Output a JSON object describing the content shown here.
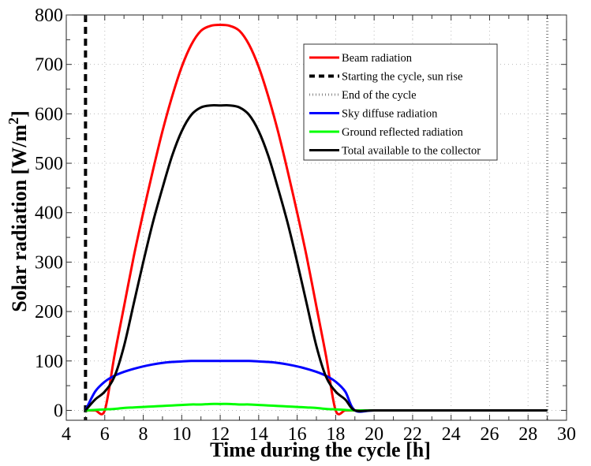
{
  "chart_data": {
    "type": "line",
    "title": "",
    "xlabel": "Time during the cycle  [h]",
    "ylabel": "Solar radiation [W/m",
    "ylabel_superscript": "2",
    "ylabel_suffix": "]",
    "xlim": [
      4,
      30
    ],
    "ylim": [
      -20,
      800
    ],
    "xticks": [
      4,
      6,
      8,
      10,
      12,
      14,
      16,
      18,
      20,
      22,
      24,
      26,
      28,
      30
    ],
    "yticks": [
      0,
      100,
      200,
      300,
      400,
      500,
      600,
      700,
      800
    ],
    "x_minor_step": 1,
    "y_minor_step": 50,
    "grid": true,
    "legend_position": "top-right",
    "vertical_lines": [
      {
        "name": "Starting the cycle, sun rise",
        "x": 5,
        "color": "#000000",
        "style": "dashed"
      },
      {
        "name": "End of the cycle",
        "x": 29,
        "color": "#888888",
        "style": "dotted"
      }
    ],
    "x": [
      5,
      5.5,
      6,
      6.5,
      7,
      7.5,
      8,
      8.5,
      9,
      9.5,
      10,
      10.5,
      11,
      11.5,
      12,
      12.5,
      13,
      13.5,
      14,
      14.5,
      15,
      15.5,
      16,
      16.5,
      17,
      17.5,
      18,
      18.5,
      19,
      20,
      22,
      24,
      26,
      28,
      29
    ],
    "series": [
      {
        "name": "Beam radiation",
        "color": "#ff0000",
        "values": [
          0,
          0,
          0,
          110,
          210,
          310,
          400,
          485,
          565,
          635,
          695,
          740,
          768,
          778,
          780,
          778,
          768,
          740,
          695,
          635,
          565,
          485,
          400,
          310,
          210,
          110,
          0,
          0,
          0,
          0,
          0,
          0,
          0,
          0,
          0
        ]
      },
      {
        "name": "Sky diffuse radiation",
        "color": "#0000ff",
        "values": [
          0,
          38,
          58,
          70,
          78,
          84,
          89,
          93,
          96,
          98,
          99,
          100,
          100,
          100,
          100,
          100,
          100,
          100,
          99,
          98,
          96,
          93,
          89,
          84,
          78,
          70,
          58,
          38,
          0,
          0,
          0,
          0,
          0,
          0,
          0
        ]
      },
      {
        "name": "Ground reflected  radiation",
        "color": "#00ff00",
        "values": [
          0,
          1,
          2,
          3,
          5,
          6,
          7,
          8,
          9,
          10,
          11,
          12,
          12,
          13,
          13,
          13,
          12,
          12,
          11,
          10,
          9,
          8,
          7,
          6,
          5,
          3,
          2,
          1,
          0,
          0,
          0,
          0,
          0,
          0,
          0
        ]
      },
      {
        "name": "Total available to the collector",
        "color": "#000000",
        "values": [
          0,
          22,
          38,
          68,
          130,
          215,
          300,
          380,
          450,
          515,
          565,
          598,
          613,
          617,
          617,
          617,
          613,
          598,
          565,
          515,
          450,
          380,
          300,
          215,
          130,
          68,
          38,
          22,
          0,
          0,
          0,
          0,
          0,
          0,
          0
        ]
      }
    ],
    "legend": [
      {
        "label": "Beam radiation",
        "color": "#ff0000",
        "style": "solid"
      },
      {
        "label": "Starting the cycle, sun rise",
        "color": "#000000",
        "style": "dashed"
      },
      {
        "label": "End of the cycle",
        "color": "#888888",
        "style": "dotted"
      },
      {
        "label": "Sky diffuse radiation",
        "color": "#0000ff",
        "style": "solid"
      },
      {
        "label": "Ground reflected  radiation",
        "color": "#00ff00",
        "style": "solid"
      },
      {
        "label": "Total available to the collector",
        "color": "#000000",
        "style": "solid"
      }
    ]
  }
}
